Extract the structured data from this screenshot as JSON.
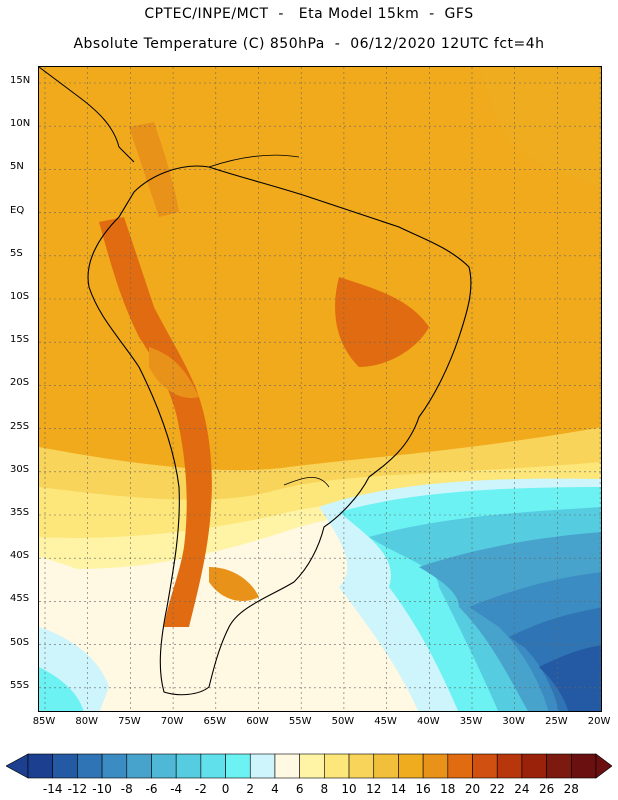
{
  "header": {
    "title_line1": "CPTEC/INPE/MCT  -   Eta Model 15km  -  GFS",
    "title_line2": "Absolute Temperature (C) 850hPa  -  06/12/2020 12UTC fct=4h"
  },
  "map": {
    "lat_labels": [
      "15N",
      "10N",
      "5N",
      "EQ",
      "5S",
      "10S",
      "15S",
      "20S",
      "25S",
      "30S",
      "35S",
      "40S",
      "45S",
      "50S",
      "55S"
    ],
    "lon_labels": [
      "85W",
      "80W",
      "75W",
      "70W",
      "65W",
      "60W",
      "55W",
      "50W",
      "45W",
      "40W",
      "35W",
      "30W",
      "25W",
      "20W"
    ],
    "gridlines": true
  },
  "colorbar": {
    "levels": [
      "-14",
      "-12",
      "-10",
      "-8",
      "-6",
      "-4",
      "-2",
      "0",
      "2",
      "4",
      "6",
      "8",
      "10",
      "12",
      "14",
      "16",
      "18",
      "20",
      "22",
      "24",
      "26",
      "28"
    ],
    "colors": [
      "#1d3f8f",
      "#245aa3",
      "#2f74b4",
      "#3b8cc2",
      "#47a3cc",
      "#4fb8d6",
      "#56cce0",
      "#5fe0ea",
      "#6cf2f2",
      "#cdf5fb",
      "#fff8e2",
      "#fff4a6",
      "#fde77a",
      "#f8d45a",
      "#f2bf3a",
      "#efac1e",
      "#e9921a",
      "#e06b10",
      "#cf5010",
      "#b8360c",
      "#9a220a",
      "#7c1a10",
      "#6a1010"
    ],
    "under_color": "#1d3f8f",
    "over_color": "#6a1010"
  }
}
